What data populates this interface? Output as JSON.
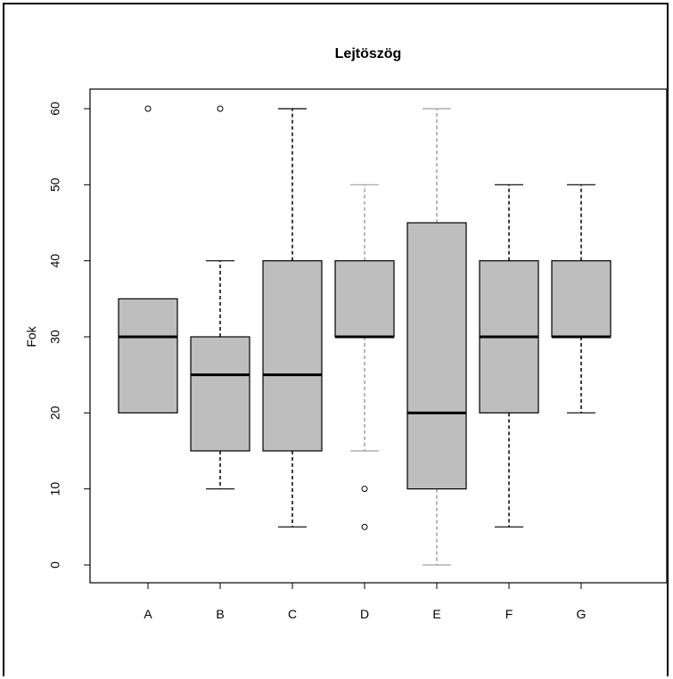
{
  "chart_data": {
    "type": "boxplot",
    "title": "Lejtöszög",
    "xlabel": "",
    "ylabel": "Fok",
    "ylim": [
      0,
      60
    ],
    "yticks": [
      "0",
      "10",
      "20",
      "30",
      "40",
      "50",
      "60"
    ],
    "categories": [
      "A",
      "B",
      "C",
      "D",
      "E",
      "F",
      "G"
    ],
    "boxes": [
      {
        "category": "A",
        "whisker_low": 20,
        "q1": 20,
        "median": 30,
        "q3": 35,
        "whisker_high": 35,
        "outliers": [
          60
        ],
        "line_style": "dashed-dark"
      },
      {
        "category": "B",
        "whisker_low": 10,
        "q1": 15,
        "median": 25,
        "q3": 30,
        "whisker_high": 40,
        "outliers": [
          60
        ],
        "line_style": "dashed-dark"
      },
      {
        "category": "C",
        "whisker_low": 5,
        "q1": 15,
        "median": 25,
        "q3": 40,
        "whisker_high": 60,
        "outliers": [],
        "line_style": "dashed-dark"
      },
      {
        "category": "D",
        "whisker_low": 15,
        "q1": 30,
        "median": 30,
        "q3": 40,
        "whisker_high": 50,
        "outliers": [
          10,
          5
        ],
        "line_style": "dashed-light"
      },
      {
        "category": "E",
        "whisker_low": 0,
        "q1": 10,
        "median": 20,
        "q3": 45,
        "whisker_high": 60,
        "outliers": [],
        "line_style": "dashed-light"
      },
      {
        "category": "F",
        "whisker_low": 5,
        "q1": 20,
        "median": 30,
        "q3": 40,
        "whisker_high": 50,
        "outliers": [],
        "line_style": "dashed-dark"
      },
      {
        "category": "G",
        "whisker_low": 20,
        "q1": 30,
        "median": 30,
        "q3": 40,
        "whisker_high": 50,
        "outliers": [],
        "line_style": "dashed-dark"
      }
    ],
    "colors": {
      "box_fill": "#bebebe",
      "box_border": "#000000",
      "median": "#000000",
      "whisker_dark": "#000000",
      "whisker_light": "#a0a0a0",
      "outlier": "#000000"
    },
    "grid": false,
    "legend": "none"
  }
}
